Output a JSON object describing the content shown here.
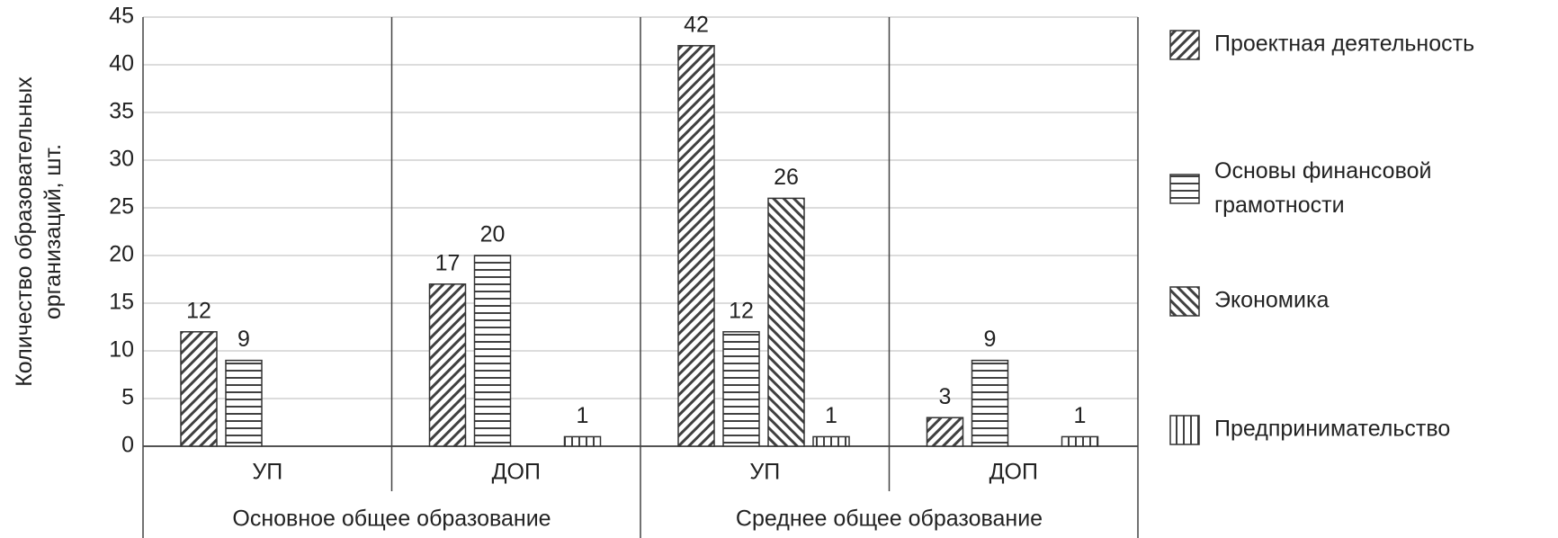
{
  "chart_data": {
    "type": "bar",
    "y_label": "Количество  образовательных организаций, шт.",
    "category_groups": [
      {
        "name": "Основное общее образование",
        "categories": [
          "УП",
          "ДОП"
        ]
      },
      {
        "name": "Среднее общее образование",
        "categories": [
          "УП",
          "ДОП"
        ]
      }
    ],
    "series": [
      {
        "name": "Проектная деятельность",
        "pattern": "diagonal-up",
        "color": "#404040",
        "values": [
          12,
          17,
          42,
          3
        ]
      },
      {
        "name": "Основы финансовой грамотности",
        "pattern": "horizontal",
        "color": "#404040",
        "values": [
          9,
          20,
          12,
          9
        ]
      },
      {
        "name": "Экономика",
        "pattern": "diagonal-down",
        "color": "#404040",
        "values": [
          null,
          null,
          26,
          null
        ]
      },
      {
        "name": "Предпринимательство",
        "pattern": "vertical",
        "color": "#404040",
        "values": [
          null,
          1,
          1,
          1
        ]
      }
    ],
    "ylim": [
      0,
      45
    ],
    "yticks": [
      0,
      5,
      10,
      15,
      20,
      25,
      30,
      35,
      40,
      45
    ],
    "grid": true,
    "legend": "right"
  }
}
